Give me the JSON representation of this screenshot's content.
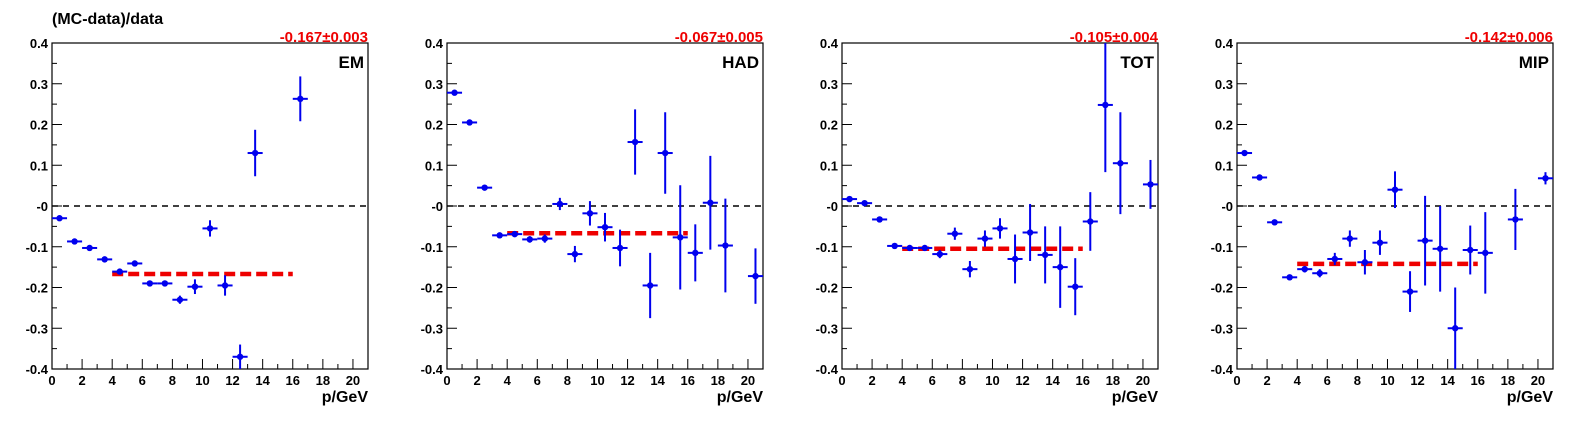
{
  "figure_ylabel": "(MC-data)/data",
  "colors": {
    "points": "#0000ee",
    "fit": "#ee0000",
    "zero_line": "#000000"
  },
  "chart_data": [
    {
      "type": "scatter",
      "panel_label": "EM",
      "fit_text": "-0.167±0.003",
      "xlabel": "p/GeV",
      "xlim": [
        0,
        21
      ],
      "ylim": [
        -0.4,
        0.4
      ],
      "xticks": [
        0,
        2,
        4,
        6,
        8,
        10,
        12,
        14,
        16,
        18,
        20
      ],
      "yticks": [
        "-0.4",
        "-0.3",
        "-0.2",
        "-0.1",
        "-0",
        "0.1",
        "0.2",
        "0.3",
        "0.4"
      ],
      "fit": {
        "value": -0.167,
        "x_range": [
          4,
          16
        ]
      },
      "points": [
        {
          "x": 0.5,
          "y": -0.03,
          "err": 0.005
        },
        {
          "x": 1.5,
          "y": -0.087,
          "err": 0.005
        },
        {
          "x": 2.5,
          "y": -0.103,
          "err": 0.005
        },
        {
          "x": 3.5,
          "y": -0.131,
          "err": 0.005
        },
        {
          "x": 4.5,
          "y": -0.161,
          "err": 0.005
        },
        {
          "x": 5.5,
          "y": -0.141,
          "err": 0.006
        },
        {
          "x": 6.5,
          "y": -0.19,
          "err": 0.006
        },
        {
          "x": 7.5,
          "y": -0.19,
          "err": 0.007
        },
        {
          "x": 8.5,
          "y": -0.23,
          "err": 0.01
        },
        {
          "x": 9.5,
          "y": -0.198,
          "err": 0.018
        },
        {
          "x": 10.5,
          "y": -0.055,
          "err": 0.02
        },
        {
          "x": 11.5,
          "y": -0.195,
          "err": 0.025
        },
        {
          "x": 12.5,
          "y": -0.37,
          "err": 0.03
        },
        {
          "x": 13.5,
          "y": 0.13,
          "err": 0.057
        },
        {
          "x": 16.5,
          "y": 0.263,
          "err": 0.055
        }
      ]
    },
    {
      "type": "scatter",
      "panel_label": "HAD",
      "fit_text": "-0.067±0.005",
      "xlabel": "p/GeV",
      "xlim": [
        0,
        21
      ],
      "ylim": [
        -0.4,
        0.4
      ],
      "xticks": [
        0,
        2,
        4,
        6,
        8,
        10,
        12,
        14,
        16,
        18,
        20
      ],
      "yticks": [
        "-0.4",
        "-0.3",
        "-0.2",
        "-0.1",
        "-0",
        "0.1",
        "0.2",
        "0.3",
        "0.4"
      ],
      "fit": {
        "value": -0.067,
        "x_range": [
          4,
          16
        ]
      },
      "points": [
        {
          "x": 0.5,
          "y": 0.278,
          "err": 0.005
        },
        {
          "x": 1.5,
          "y": 0.205,
          "err": 0.005
        },
        {
          "x": 2.5,
          "y": 0.045,
          "err": 0.005
        },
        {
          "x": 3.5,
          "y": -0.072,
          "err": 0.005
        },
        {
          "x": 4.5,
          "y": -0.069,
          "err": 0.005
        },
        {
          "x": 5.5,
          "y": -0.082,
          "err": 0.008
        },
        {
          "x": 6.5,
          "y": -0.08,
          "err": 0.01
        },
        {
          "x": 7.5,
          "y": 0.005,
          "err": 0.015
        },
        {
          "x": 8.5,
          "y": -0.118,
          "err": 0.02
        },
        {
          "x": 9.5,
          "y": -0.018,
          "err": 0.03
        },
        {
          "x": 10.5,
          "y": -0.052,
          "err": 0.035
        },
        {
          "x": 11.5,
          "y": -0.103,
          "err": 0.045
        },
        {
          "x": 12.5,
          "y": 0.157,
          "err": 0.08
        },
        {
          "x": 13.5,
          "y": -0.195,
          "err": 0.08
        },
        {
          "x": 14.5,
          "y": 0.13,
          "err": 0.1
        },
        {
          "x": 15.5,
          "y": -0.077,
          "err": 0.128
        },
        {
          "x": 16.5,
          "y": -0.115,
          "err": 0.07
        },
        {
          "x": 17.5,
          "y": 0.008,
          "err": 0.115
        },
        {
          "x": 18.5,
          "y": -0.097,
          "err": 0.115
        },
        {
          "x": 20.5,
          "y": -0.172,
          "err": 0.068
        }
      ]
    },
    {
      "type": "scatter",
      "panel_label": "TOT",
      "fit_text": "-0.105±0.004",
      "xlabel": "p/GeV",
      "xlim": [
        0,
        21
      ],
      "ylim": [
        -0.4,
        0.4
      ],
      "xticks": [
        0,
        2,
        4,
        6,
        8,
        10,
        12,
        14,
        16,
        18,
        20
      ],
      "yticks": [
        "-0.4",
        "-0.3",
        "-0.2",
        "-0.1",
        "-0",
        "0.1",
        "0.2",
        "0.3",
        "0.4"
      ],
      "fit": {
        "value": -0.105,
        "x_range": [
          4,
          16
        ]
      },
      "points": [
        {
          "x": 0.5,
          "y": 0.017,
          "err": 0.005
        },
        {
          "x": 1.5,
          "y": 0.007,
          "err": 0.005
        },
        {
          "x": 2.5,
          "y": -0.033,
          "err": 0.005
        },
        {
          "x": 3.5,
          "y": -0.098,
          "err": 0.005
        },
        {
          "x": 4.5,
          "y": -0.103,
          "err": 0.005
        },
        {
          "x": 5.5,
          "y": -0.103,
          "err": 0.006
        },
        {
          "x": 6.5,
          "y": -0.118,
          "err": 0.01
        },
        {
          "x": 7.5,
          "y": -0.068,
          "err": 0.015
        },
        {
          "x": 8.5,
          "y": -0.155,
          "err": 0.02
        },
        {
          "x": 9.5,
          "y": -0.08,
          "err": 0.02
        },
        {
          "x": 10.5,
          "y": -0.055,
          "err": 0.025
        },
        {
          "x": 11.5,
          "y": -0.13,
          "err": 0.06
        },
        {
          "x": 12.5,
          "y": -0.065,
          "err": 0.07
        },
        {
          "x": 13.5,
          "y": -0.12,
          "err": 0.07
        },
        {
          "x": 14.5,
          "y": -0.15,
          "err": 0.1
        },
        {
          "x": 15.5,
          "y": -0.198,
          "err": 0.07
        },
        {
          "x": 16.5,
          "y": -0.038,
          "err": 0.072
        },
        {
          "x": 17.5,
          "y": 0.248,
          "err": 0.165
        },
        {
          "x": 18.5,
          "y": 0.105,
          "err": 0.125
        },
        {
          "x": 20.5,
          "y": 0.053,
          "err": 0.06
        }
      ]
    },
    {
      "type": "scatter",
      "panel_label": "MIP",
      "fit_text": "-0.142±0.006",
      "xlabel": "p/GeV",
      "xlim": [
        0,
        21
      ],
      "ylim": [
        -0.4,
        0.4
      ],
      "xticks": [
        0,
        2,
        4,
        6,
        8,
        10,
        12,
        14,
        16,
        18,
        20
      ],
      "yticks": [
        "-0.4",
        "-0.3",
        "-0.2",
        "-0.1",
        "-0",
        "0.1",
        "0.2",
        "0.3",
        "0.4"
      ],
      "fit": {
        "value": -0.142,
        "x_range": [
          4,
          16
        ]
      },
      "points": [
        {
          "x": 0.5,
          "y": 0.13,
          "err": 0.005
        },
        {
          "x": 1.5,
          "y": 0.07,
          "err": 0.005
        },
        {
          "x": 2.5,
          "y": -0.04,
          "err": 0.005
        },
        {
          "x": 3.5,
          "y": -0.175,
          "err": 0.005
        },
        {
          "x": 4.5,
          "y": -0.155,
          "err": 0.008
        },
        {
          "x": 5.5,
          "y": -0.165,
          "err": 0.01
        },
        {
          "x": 6.5,
          "y": -0.13,
          "err": 0.015
        },
        {
          "x": 7.5,
          "y": -0.08,
          "err": 0.02
        },
        {
          "x": 8.5,
          "y": -0.138,
          "err": 0.03
        },
        {
          "x": 9.5,
          "y": -0.09,
          "err": 0.03
        },
        {
          "x": 10.5,
          "y": 0.04,
          "err": 0.045
        },
        {
          "x": 11.5,
          "y": -0.21,
          "err": 0.05
        },
        {
          "x": 12.5,
          "y": -0.085,
          "err": 0.11
        },
        {
          "x": 13.5,
          "y": -0.105,
          "err": 0.105
        },
        {
          "x": 14.5,
          "y": -0.3,
          "err": 0.1
        },
        {
          "x": 15.5,
          "y": -0.108,
          "err": 0.06
        },
        {
          "x": 16.5,
          "y": -0.115,
          "err": 0.1
        },
        {
          "x": 18.5,
          "y": -0.033,
          "err": 0.075
        },
        {
          "x": 20.5,
          "y": 0.068,
          "err": 0.015
        }
      ]
    }
  ]
}
